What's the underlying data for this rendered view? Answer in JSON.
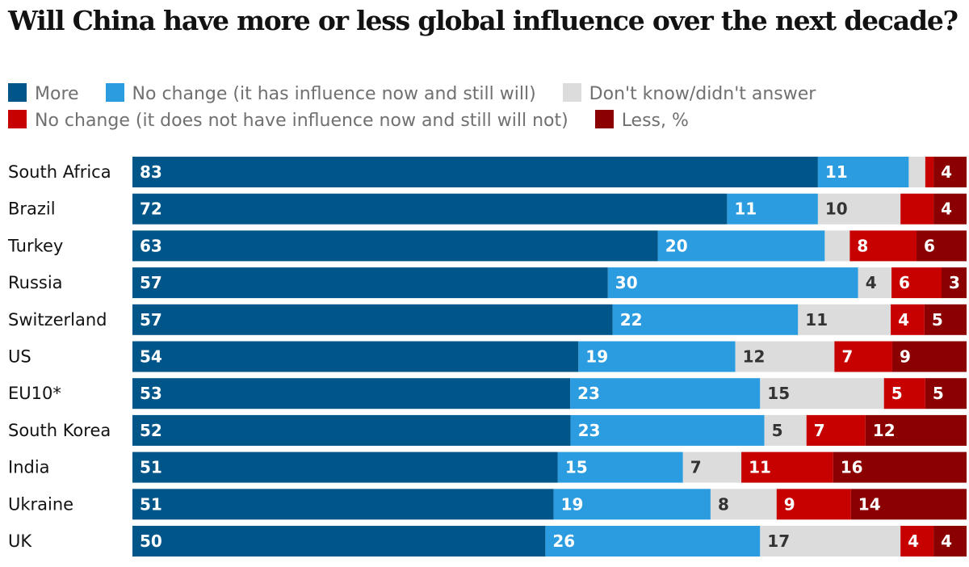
{
  "title": "Will China have more or less global influence over the next decade?",
  "chart_data": {
    "type": "bar",
    "orientation": "horizontal",
    "stacked": true,
    "title": "Will China have more or less global influence over the next decade?",
    "categories": [
      "South Africa",
      "Brazil",
      "Turkey",
      "Russia",
      "Switzerland",
      "US",
      "EU10*",
      "South Korea",
      "India",
      "Ukraine",
      "UK"
    ],
    "series": [
      {
        "name": "More",
        "color": "#005689",
        "label_color": "#ffffff",
        "values": [
          83,
          72,
          63,
          57,
          57,
          54,
          53,
          52,
          51,
          51,
          50
        ]
      },
      {
        "name": "No change (it has influence now and still will)",
        "color": "#2c9ce0",
        "label_color": "#ffffff",
        "values": [
          11,
          11,
          20,
          30,
          22,
          19,
          23,
          23,
          15,
          19,
          26
        ]
      },
      {
        "name": "Don't know/didn't answer",
        "color": "#dcdcdc",
        "label_color": "#333333",
        "values": [
          2,
          10,
          3,
          4,
          11,
          12,
          15,
          5,
          7,
          8,
          17
        ]
      },
      {
        "name": "No change (it does not have influence now and still will not)",
        "color": "#c70000",
        "label_color": "#ffffff",
        "values": [
          1,
          4,
          8,
          6,
          4,
          7,
          5,
          7,
          11,
          9,
          4
        ]
      },
      {
        "name": "Less, %",
        "color": "#8b0000",
        "label_color": "#ffffff",
        "values": [
          4,
          4,
          6,
          3,
          5,
          9,
          5,
          12,
          16,
          14,
          4
        ]
      }
    ],
    "displayed_labels": [
      [
        "83",
        "11",
        "",
        "",
        "4"
      ],
      [
        "72",
        "11",
        "10",
        "",
        "4"
      ],
      [
        "63",
        "20",
        "",
        "8",
        "6"
      ],
      [
        "57",
        "30",
        "4",
        "6",
        "3"
      ],
      [
        "57",
        "22",
        "11",
        "4",
        "5"
      ],
      [
        "54",
        "19",
        "12",
        "7",
        "9"
      ],
      [
        "53",
        "23",
        "15",
        "5",
        "5"
      ],
      [
        "52",
        "23",
        "5",
        "7",
        "12"
      ],
      [
        "51",
        "15",
        "7",
        "11",
        "16"
      ],
      [
        "51",
        "19",
        "8",
        "9",
        "14"
      ],
      [
        "50",
        "26",
        "17",
        "4",
        "4"
      ]
    ],
    "xlim": [
      0,
      100
    ],
    "legend_position": "top",
    "grid": false,
    "xlabel": "",
    "ylabel": ""
  }
}
